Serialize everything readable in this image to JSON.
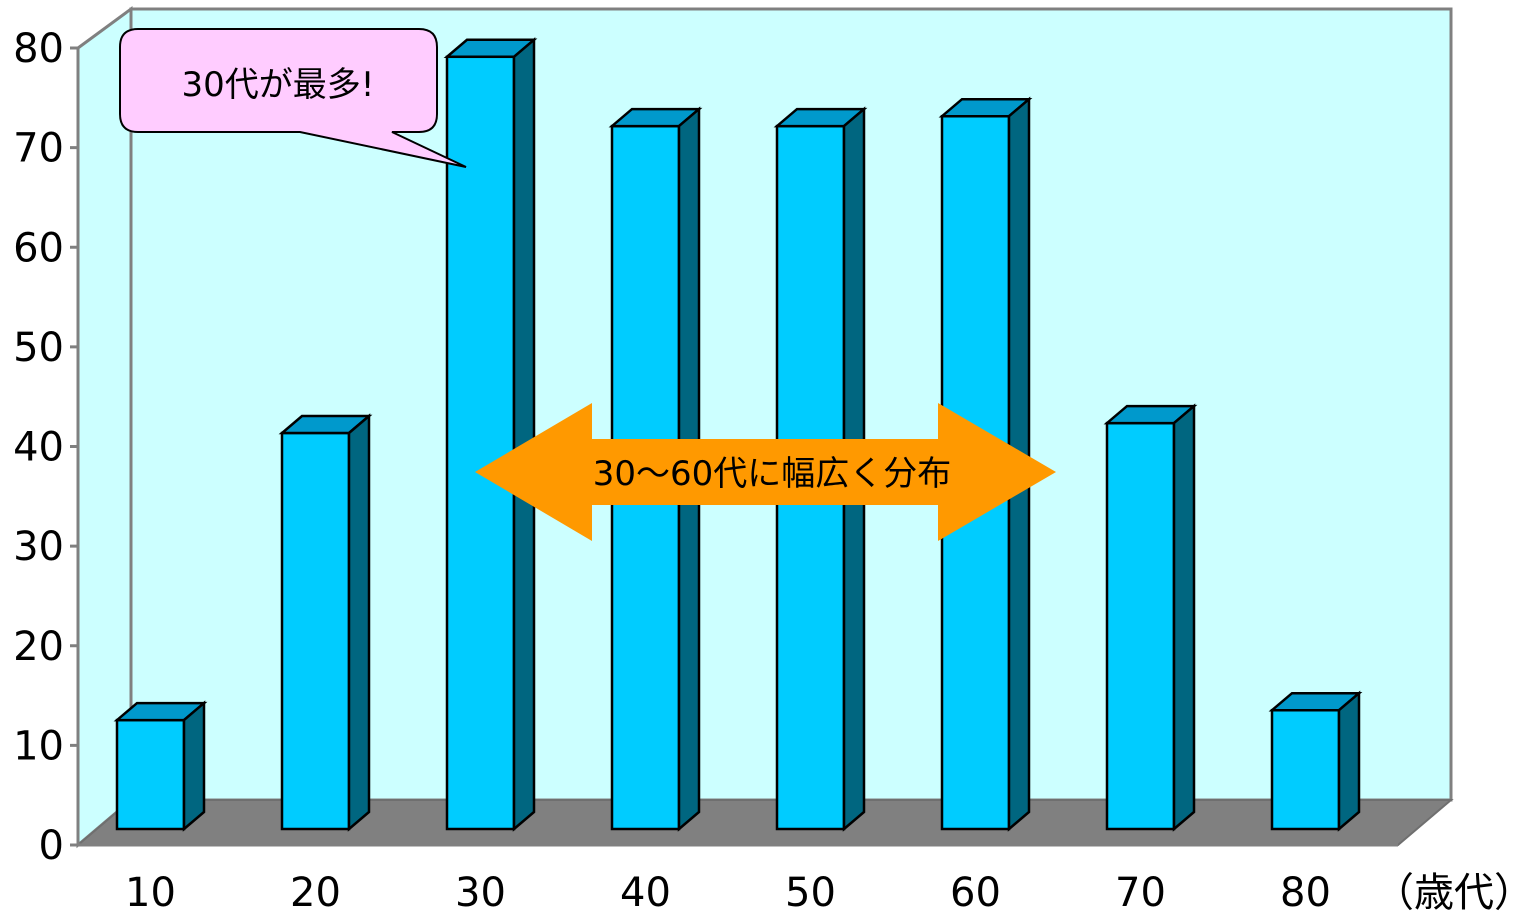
{
  "chart_data": {
    "type": "bar",
    "style": "3d-column",
    "categories": [
      "10",
      "20",
      "30",
      "40",
      "50",
      "60",
      "70",
      "80"
    ],
    "values": [
      11,
      40,
      78,
      71,
      71,
      72,
      41,
      12
    ],
    "x_unit": "（歳代）",
    "ylim": [
      0,
      80
    ],
    "yticks": [
      "0",
      "10",
      "20",
      "30",
      "40",
      "50",
      "60",
      "70",
      "80"
    ],
    "grid": false,
    "legend": "none",
    "annotations": {
      "callout": "30代が最多!",
      "range_arrow": "30〜60代に幅広く分布"
    }
  },
  "colors": {
    "background_wall": "#ccffff",
    "floor": "#808080",
    "bar_front": "#00ccff",
    "bar_top": "#0099cc",
    "bar_side": "#006680",
    "callout_fill": "#ffccff",
    "arrow_fill": "#ff9900",
    "frame": "#808080"
  }
}
